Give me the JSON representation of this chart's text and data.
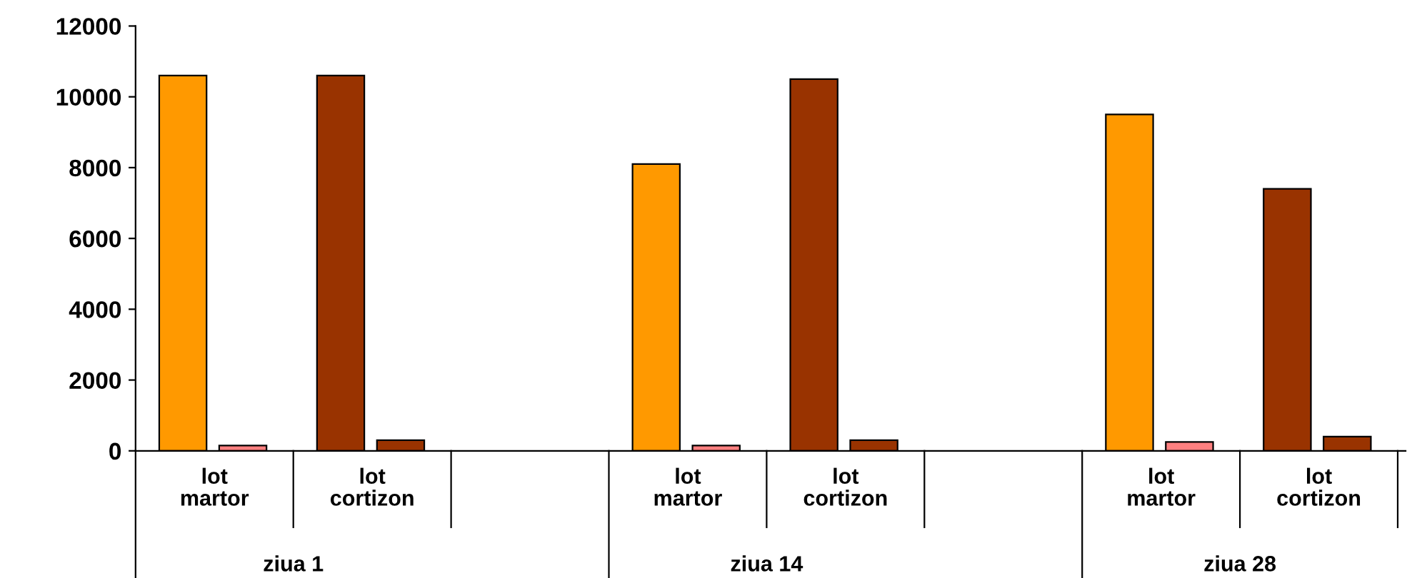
{
  "chart_data": {
    "type": "bar",
    "categories": [
      "lot\nmartor",
      "lot\ncortizon",
      null,
      "lot\nmartor",
      "lot\ncortizon",
      null,
      "lot\nmartor",
      "lot\ncortizon"
    ],
    "series": [
      {
        "colors": [
          "#ff9900",
          "#993300",
          "#ff9900",
          "#ff9900",
          "#993300",
          "#ff9900",
          "#ff9900",
          "#993300"
        ],
        "values": [
          10600,
          10600,
          null,
          8100,
          10500,
          null,
          9500,
          7400
        ]
      },
      {
        "colors": [
          "#ff8080",
          "#993300",
          "#ff8080",
          "#ff8080",
          "#993300",
          "#ff8080",
          "#ff8080",
          "#993300"
        ],
        "values": [
          150,
          300,
          null,
          150,
          300,
          null,
          250,
          400
        ]
      }
    ],
    "ylim": [
      0,
      12000
    ],
    "yticks": [
      0,
      2000,
      4000,
      6000,
      8000,
      10000,
      12000
    ],
    "annotations": [
      "ziua 1",
      "ziua 14",
      "ziua 28"
    ],
    "grid": false
  }
}
